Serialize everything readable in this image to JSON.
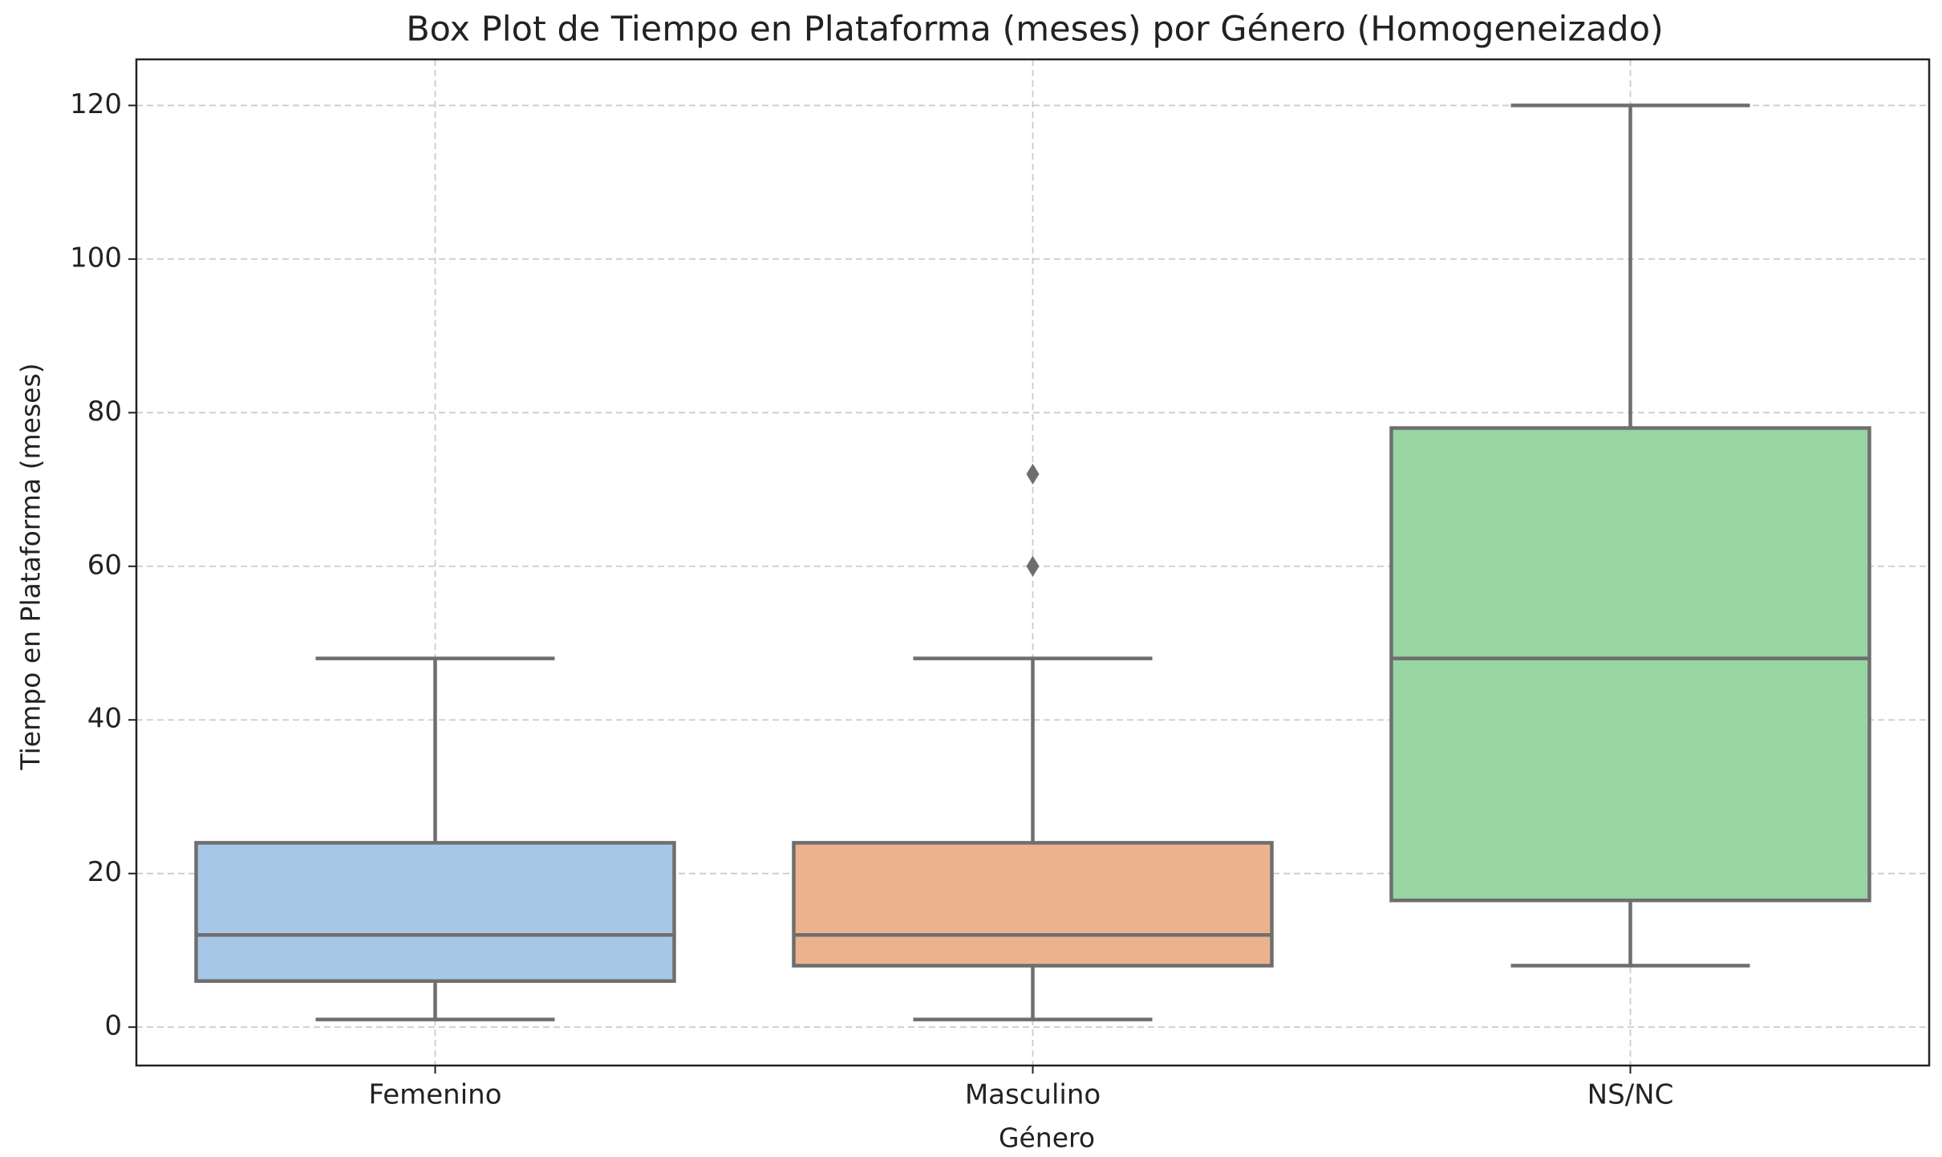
{
  "chart_data": {
    "type": "box",
    "title": "Box Plot de Tiempo en Plataforma (meses) por Género (Homogeneizado)",
    "x_label": "Género",
    "y_label": "Tiempo en Plataforma (meses)",
    "categories": [
      "Femenino",
      "Masculino",
      "NS/NC"
    ],
    "colors": [
      "#a7c7e7",
      "#eab38e",
      "#97d5a3"
    ],
    "series": [
      {
        "whislo": 1,
        "q1": 6,
        "med": 12,
        "q3": 24,
        "whishi": 48,
        "fliers": []
      },
      {
        "whislo": 1,
        "q1": 8,
        "med": 12,
        "q3": 24,
        "whishi": 48,
        "fliers": [
          60,
          72
        ]
      },
      {
        "whislo": 8,
        "q1": 16.5,
        "med": 48,
        "q3": 78,
        "whishi": 120,
        "fliers": []
      }
    ],
    "ylim": [
      -5,
      126
    ],
    "yticks": [
      0,
      20,
      40,
      60,
      80,
      100,
      120
    ],
    "grid": true
  }
}
